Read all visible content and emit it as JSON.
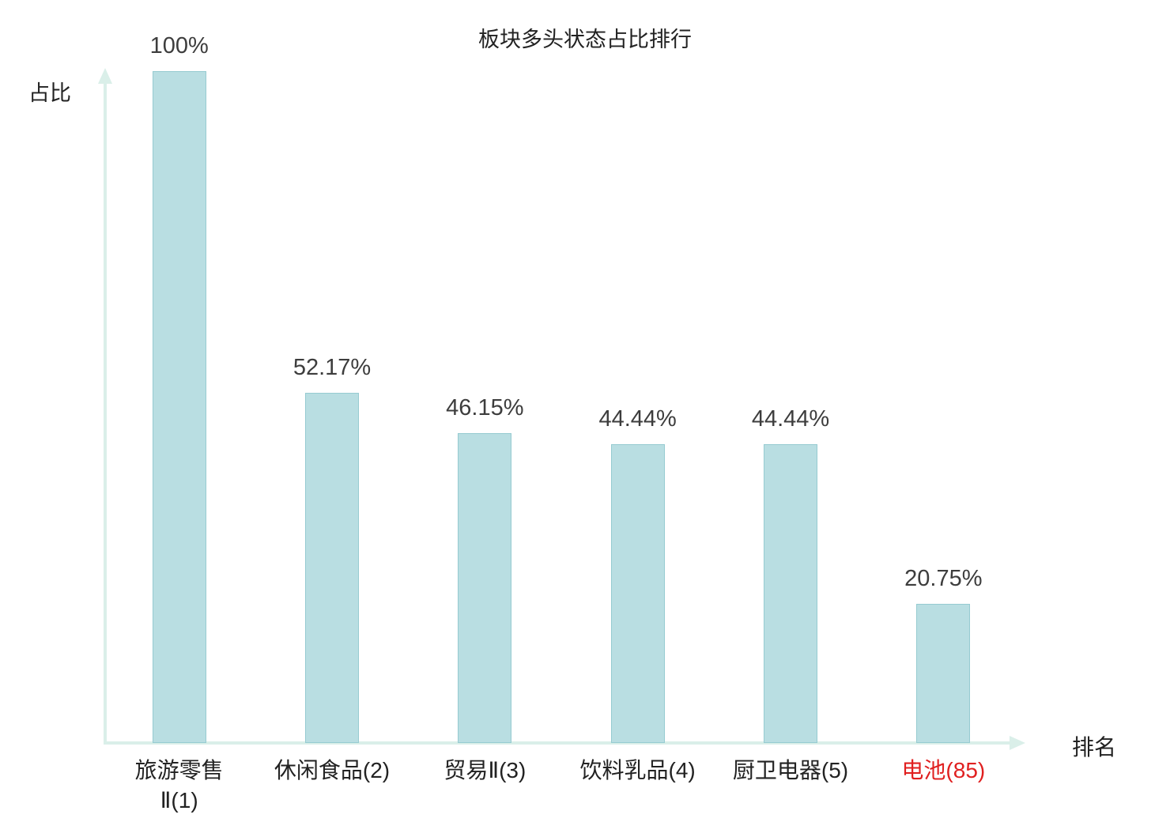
{
  "chart_data": {
    "type": "bar",
    "title": "板块多头状态占比排行",
    "ylabel": "占比",
    "xlabel": "排名",
    "categories": [
      "旅游零售\nⅡ(1)",
      "休闲食品(2)",
      "贸易Ⅱ(3)",
      "饮料乳品(4)",
      "厨卫电器(5)",
      "电池(85)"
    ],
    "values": [
      100,
      52.17,
      46.15,
      44.44,
      44.44,
      20.75
    ],
    "value_labels": [
      "100%",
      "52.17%",
      "46.15%",
      "44.44%",
      "44.44%",
      "20.75%"
    ],
    "highlight_index": 5,
    "ylim": [
      0,
      100
    ],
    "grid": false,
    "legend": "none"
  },
  "colors": {
    "bar_fill": "#b9dee2",
    "bar_border": "#96cbd1",
    "axis": "#daefe9",
    "value_label": "#3d3d3d",
    "category_label": "#222222",
    "highlight": "#e02020",
    "background": "#ffffff"
  }
}
